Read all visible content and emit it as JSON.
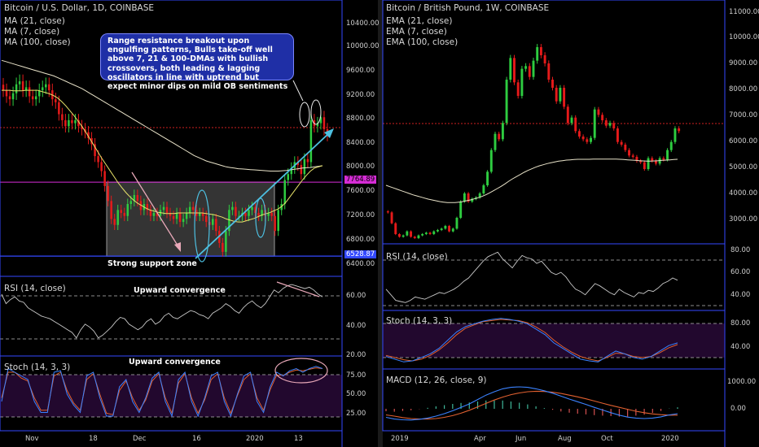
{
  "colors": {
    "up": "#2ecc40",
    "down": "#e51a1a",
    "ma21": "#e8e36a",
    "ma7": "#e02020",
    "ma100": "#e9e3c9",
    "panel_border": "#3349ff",
    "magenta": "#d62cd6",
    "stoch_k": "#3b82ff",
    "stoch_d": "#e06030",
    "macd": "#3b82ff",
    "signal": "#e06030",
    "rsi": "#c9c9c9",
    "arrow": "#4dbfe0"
  },
  "left": {
    "title": "Bitcoin / U.S. Dollar, 1D, COINBASE",
    "legend": [
      "MA (21, close)",
      "MA (7, close)",
      "MA (100, close)"
    ],
    "note": "Range resistance breakout upon engulfing patterns, Bulls take-off well above 7, 21 & 100-DMAs with bullish crossovers, both leading & lagging oscillators in line with uptrend but expect minor dips on mild OB sentiments",
    "support_label": "Strong support zone",
    "rsi_title": "RSI (14, close)",
    "rsi_annotation": "Upward convergence",
    "stoch_title": "Stoch (14, 3, 3)",
    "stoch_annotation": "Upward convergence",
    "price_badge_1": "7764.89",
    "price_badge_2": "6528.87",
    "price_ticks": [
      "10400.00",
      "10000.00",
      "9600.00",
      "9200.00",
      "8800.00",
      "8400.00",
      "8000.00",
      "7600.00",
      "7200.00",
      "6800.00",
      "6400.00"
    ],
    "rsi_ticks": [
      "60.00",
      "40.00",
      "20.00"
    ],
    "stoch_ticks": [
      "75.00",
      "50.00",
      "25.00"
    ],
    "x_ticks": [
      "Nov",
      "18",
      "Dec",
      "16",
      "2020",
      "13"
    ]
  },
  "right": {
    "title": "Bitcoin / British Pound, 1W, COINBASE",
    "legend": [
      "EMA (21, close)",
      "EMA (7, close)",
      "EMA (100, close)"
    ],
    "rsi_title": "RSI (14, close)",
    "stoch_title": "Stoch (14, 3, 3)",
    "macd_title": "MACD (12, 26, close, 9)",
    "price_ticks": [
      "11000.00",
      "10000.00",
      "9000.00",
      "8000.00",
      "7000.00",
      "6000.00",
      "5000.00",
      "4000.00",
      "3000.00"
    ],
    "rsi_ticks": [
      "80.00",
      "60.00",
      "40.00"
    ],
    "stoch_ticks": [
      "80.00",
      "40.00"
    ],
    "macd_ticks": [
      "1000.00",
      "0.00"
    ],
    "x_ticks": [
      "2019",
      "Apr",
      "Jun",
      "Aug",
      "Oct",
      "2020"
    ]
  },
  "chart_data": [
    {
      "type": "candlestick",
      "title": "Bitcoin / U.S. Dollar, 1D, COINBASE",
      "x_ticks": [
        "Nov",
        "18",
        "Dec",
        "16",
        "2020",
        "13"
      ],
      "ylim": [
        6300,
        10700
      ],
      "support_zone": [
        6528.87,
        7764.89
      ],
      "closes": [
        9300,
        9200,
        9150,
        9250,
        9400,
        9450,
        9300,
        9350,
        9200,
        9150,
        9200,
        9300,
        9350,
        9400,
        9300,
        9150,
        9100,
        8900,
        8800,
        8700,
        8800,
        8750,
        8800,
        8700,
        8650,
        8600,
        8500,
        8400,
        8200,
        8100,
        7950,
        7700,
        7450,
        7150,
        7050,
        7300,
        7250,
        7200,
        7400,
        7450,
        7550,
        7450,
        7300,
        7400,
        7300,
        7200,
        7250,
        7200,
        7300,
        7350,
        7250,
        7200,
        7150,
        7250,
        7100,
        7150,
        7250,
        7350,
        7300,
        7200,
        7250,
        7200,
        7100,
        7050,
        7150,
        6950,
        6750,
        6600,
        6950,
        7300,
        7350,
        7200,
        7200,
        7250,
        7200,
        7300,
        7350,
        7250,
        7200,
        7300,
        7200,
        7250,
        7200,
        6950,
        7300,
        7400,
        7800,
        7900,
        8000,
        8100,
        8050,
        7900,
        8150,
        8100,
        8800,
        8700,
        8750,
        8850,
        8650,
        8550
      ],
      "ma21": [
        9300,
        9300,
        9300,
        9290,
        9290,
        9290,
        9300,
        9300,
        9300,
        9300,
        9280,
        9260,
        9240,
        9210,
        9170,
        9110,
        9040,
        8960,
        8880,
        8790,
        8700,
        8600,
        8490,
        8380,
        8270,
        8160,
        8060,
        7960,
        7860,
        7760,
        7670,
        7590,
        7520,
        7460,
        7410,
        7370,
        7330,
        7300,
        7280,
        7260,
        7250,
        7240,
        7240,
        7240,
        7250,
        7250,
        7250,
        7250,
        7250,
        7250,
        7250,
        7240,
        7230,
        7220,
        7200,
        7180,
        7150,
        7130,
        7110,
        7100,
        7100,
        7120,
        7140,
        7160,
        7190,
        7220,
        7240,
        7260,
        7290,
        7320,
        7370,
        7440,
        7530,
        7620,
        7710,
        7800,
        7880,
        7950,
        8000,
        8020,
        8040
      ],
      "ma100": [
        9800,
        9780,
        9760,
        9740,
        9720,
        9700,
        9680,
        9660,
        9640,
        9620,
        9600,
        9580,
        9560,
        9540,
        9510,
        9480,
        9450,
        9420,
        9390,
        9360,
        9330,
        9290,
        9250,
        9210,
        9170,
        9130,
        9090,
        9050,
        9010,
        8970,
        8930,
        8890,
        8850,
        8810,
        8770,
        8730,
        8690,
        8650,
        8610,
        8570,
        8530,
        8490,
        8450,
        8410,
        8370,
        8330,
        8290,
        8250,
        8210,
        8180,
        8150,
        8120,
        8100,
        8080,
        8060,
        8040,
        8020,
        8010,
        8000,
        7990,
        7985,
        7980,
        7975,
        7970,
        7965,
        7960,
        7955,
        7950,
        7950,
        7950,
        7955,
        7960,
        7970,
        7980,
        7990,
        8000,
        8005,
        8010,
        8020,
        8030,
        8040
      ],
      "rsi_ylim": [
        18,
        72
      ],
      "rsi": [
        62,
        55,
        58,
        60,
        57,
        56,
        52,
        50,
        48,
        46,
        45,
        44,
        42,
        40,
        38,
        36,
        34,
        30,
        36,
        40,
        38,
        35,
        30,
        32,
        35,
        38,
        42,
        45,
        44,
        40,
        38,
        36,
        38,
        42,
        44,
        40,
        42,
        46,
        48,
        45,
        44,
        46,
        48,
        50,
        49,
        47,
        46,
        44,
        48,
        50,
        52,
        55,
        53,
        50,
        48,
        52,
        55,
        57,
        54,
        52,
        55,
        60,
        65,
        63,
        66,
        68,
        69,
        68,
        67,
        66,
        67,
        65,
        62,
        60
      ],
      "stoch_ylim": [
        0,
        100
      ],
      "stoch_k": [
        40,
        85,
        80,
        75,
        70,
        40,
        25,
        25,
        80,
        82,
        50,
        35,
        25,
        75,
        80,
        45,
        20,
        20,
        60,
        70,
        40,
        25,
        45,
        72,
        80,
        40,
        20,
        70,
        80,
        40,
        20,
        45,
        75,
        80,
        40,
        20,
        50,
        75,
        80,
        40,
        25,
        60,
        80,
        75,
        82,
        85,
        80,
        85,
        88,
        85
      ],
      "stoch_d": [
        45,
        80,
        80,
        72,
        68,
        45,
        28,
        28,
        75,
        80,
        55,
        38,
        28,
        70,
        78,
        50,
        24,
        22,
        55,
        68,
        45,
        28,
        42,
        68,
        78,
        45,
        24,
        65,
        78,
        45,
        24,
        42,
        70,
        78,
        45,
        24,
        48,
        70,
        78,
        45,
        28,
        56,
        76,
        76,
        80,
        83,
        82,
        84,
        86,
        85
      ]
    },
    {
      "type": "candlestick",
      "title": "Bitcoin / British Pound, 1W, COINBASE",
      "x_ticks": [
        "2019",
        "Apr",
        "Jun",
        "Aug",
        "Oct",
        "2020"
      ],
      "ylim": [
        2600,
        11300
      ],
      "closes": [
        3700,
        3300,
        2900,
        2800,
        2850,
        3000,
        2800,
        2750,
        2850,
        2900,
        2950,
        2900,
        3000,
        3050,
        3100,
        3200,
        3000,
        3100,
        3500,
        4100,
        4400,
        4100,
        4200,
        4250,
        4400,
        4700,
        5200,
        6000,
        6600,
        6400,
        7000,
        8600,
        9400,
        8500,
        8000,
        9000,
        9100,
        8700,
        9300,
        9800,
        9500,
        9200,
        8600,
        8300,
        7800,
        8300,
        7600,
        7000,
        7200,
        6700,
        6500,
        6400,
        6300,
        6450,
        7500,
        7300,
        7100,
        6900,
        7000,
        6800,
        6300,
        6200,
        6000,
        5800,
        5750,
        5600,
        5550,
        5300,
        5700,
        5600,
        5500,
        5700,
        5650,
        6000,
        6300,
        6800,
        6700
      ],
      "ema100": [
        4700,
        4650,
        4600,
        4550,
        4500,
        4450,
        4400,
        4350,
        4310,
        4270,
        4230,
        4190,
        4160,
        4130,
        4100,
        4080,
        4060,
        4060,
        4060,
        4080,
        4100,
        4130,
        4160,
        4200,
        4240,
        4290,
        4350,
        4420,
        4500,
        4580,
        4660,
        4750,
        4850,
        4940,
        5020,
        5100,
        5180,
        5250,
        5310,
        5370,
        5420,
        5460,
        5500,
        5530,
        5560,
        5590,
        5610,
        5630,
        5640,
        5650,
        5660,
        5660,
        5660,
        5660,
        5670,
        5670,
        5670,
        5670,
        5670,
        5670,
        5670,
        5660,
        5650,
        5640,
        5630,
        5620,
        5610,
        5600,
        5590,
        5590,
        5600,
        5610,
        5620,
        5630,
        5640,
        5650,
        5660
      ],
      "rsi_ylim": [
        26,
        84
      ],
      "rsi": [
        45,
        40,
        35,
        34,
        33,
        35,
        38,
        37,
        36,
        38,
        40,
        42,
        41,
        43,
        45,
        48,
        52,
        55,
        60,
        65,
        70,
        74,
        76,
        78,
        72,
        68,
        64,
        70,
        75,
        73,
        72,
        68,
        70,
        65,
        60,
        58,
        60,
        56,
        50,
        45,
        43,
        40,
        45,
        50,
        48,
        45,
        42,
        40,
        45,
        42,
        40,
        38,
        42,
        41,
        44,
        43,
        46,
        50,
        52,
        55,
        53
      ],
      "stoch_ylim": [
        0,
        100
      ],
      "stoch_k": [
        20,
        15,
        10,
        12,
        18,
        25,
        35,
        50,
        65,
        75,
        80,
        85,
        88,
        90,
        88,
        85,
        80,
        70,
        60,
        45,
        35,
        25,
        15,
        12,
        10,
        20,
        30,
        25,
        18,
        15,
        20,
        30,
        40,
        45
      ],
      "stoch_d": [
        22,
        18,
        14,
        12,
        15,
        22,
        32,
        45,
        60,
        72,
        78,
        84,
        86,
        88,
        87,
        86,
        82,
        74,
        64,
        50,
        38,
        28,
        20,
        15,
        12,
        18,
        26,
        25,
        20,
        18,
        20,
        27,
        36,
        42
      ],
      "macd_ylim": [
        -900,
        1500
      ],
      "macd": [
        -350,
        -420,
        -450,
        -460,
        -430,
        -380,
        -300,
        -200,
        -80,
        60,
        200,
        380,
        560,
        700,
        820,
        880,
        900,
        880,
        820,
        740,
        640,
        520,
        400,
        290,
        180,
        60,
        -50,
        -160,
        -260,
        -340,
        -380,
        -400,
        -380,
        -330,
        -250,
        -200
      ],
      "signal": [
        -250,
        -300,
        -360,
        -400,
        -420,
        -420,
        -400,
        -350,
        -280,
        -180,
        -60,
        80,
        220,
        360,
        480,
        580,
        650,
        700,
        720,
        710,
        680,
        630,
        560,
        490,
        410,
        320,
        230,
        140,
        60,
        -20,
        -100,
        -160,
        -210,
        -240,
        -260,
        -260
      ]
    }
  ]
}
